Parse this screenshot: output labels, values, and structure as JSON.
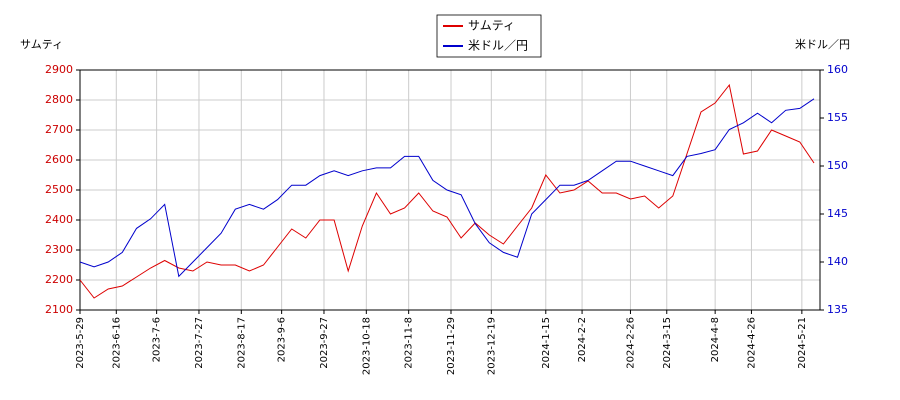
{
  "chart_data": {
    "type": "line",
    "y_label": "サムティ",
    "y2_label": "米ドル／円",
    "x": [
      "2023-5-29",
      "2023-6-5",
      "2023-6-12",
      "2023-6-19",
      "2023-6-26",
      "2023-7-3",
      "2023-7-10",
      "2023-7-17",
      "2023-7-24",
      "2023-7-31",
      "2023-8-7",
      "2023-8-14",
      "2023-8-21",
      "2023-8-28",
      "2023-9-4",
      "2023-9-11",
      "2023-9-18",
      "2023-9-25",
      "2023-10-2",
      "2023-10-9",
      "2023-10-16",
      "2023-10-23",
      "2023-10-30",
      "2023-11-6",
      "2023-11-13",
      "2023-11-20",
      "2023-11-27",
      "2023-12-4",
      "2023-12-11",
      "2023-12-18",
      "2023-12-25",
      "2024-1-1",
      "2024-1-8",
      "2024-1-15",
      "2024-1-22",
      "2024-1-29",
      "2024-2-5",
      "2024-2-12",
      "2024-2-19",
      "2024-2-26",
      "2024-3-4",
      "2024-3-11",
      "2024-3-18",
      "2024-3-25",
      "2024-4-1",
      "2024-4-8",
      "2024-4-15",
      "2024-4-22",
      "2024-4-29",
      "2024-5-6",
      "2024-5-13",
      "2024-5-20",
      "2024-5-27"
    ],
    "series": [
      {
        "name": "サムティ",
        "color": "#dd0000",
        "axis": "y",
        "values": [
          2200,
          2140,
          2170,
          2180,
          2210,
          2240,
          2265,
          2240,
          2230,
          2260,
          2250,
          2250,
          2230,
          2250,
          2310,
          2370,
          2340,
          2400,
          2400,
          2230,
          2380,
          2490,
          2420,
          2440,
          2490,
          2430,
          2410,
          2340,
          2390,
          2350,
          2320,
          2380,
          2440,
          2550,
          2490,
          2500,
          2530,
          2490,
          2490,
          2470,
          2480,
          2440,
          2480,
          2620,
          2760,
          2790,
          2850,
          2620,
          2630,
          2700,
          2680,
          2660,
          2590
        ]
      },
      {
        "name": "米ドル／円",
        "color": "#0000cc",
        "axis": "y2",
        "values": [
          140,
          139.5,
          140,
          141,
          143.5,
          144.5,
          146,
          138.5,
          140,
          141.5,
          143,
          145.5,
          146,
          145.5,
          146.5,
          148,
          148,
          149,
          149.5,
          149,
          149.5,
          149.8,
          149.8,
          151,
          151,
          148.5,
          147.5,
          147,
          144,
          142,
          141,
          140.5,
          145,
          146.5,
          148,
          148,
          148.5,
          149.5,
          150.5,
          150.5,
          150,
          149.5,
          149,
          151,
          151.3,
          151.7,
          153.8,
          154.5,
          155.5,
          154.5,
          155.8,
          156,
          157
        ]
      }
    ],
    "xlim": [
      "2023-5-29",
      "2024-5-30"
    ],
    "xticks": [
      "2023-5-29",
      "2023-6-16",
      "2023-7-6",
      "2023-7-27",
      "2023-8-17",
      "2023-9-6",
      "2023-9-27",
      "2023-10-18",
      "2023-11-8",
      "2023-11-29",
      "2023-12-19",
      "2024-1-15",
      "2024-2-2",
      "2024-2-26",
      "2024-3-15",
      "2024-4-8",
      "2024-4-26",
      "2024-5-21"
    ],
    "ylim": [
      2100,
      2900
    ],
    "yticks": [
      2100,
      2200,
      2300,
      2400,
      2500,
      2600,
      2700,
      2800,
      2900
    ],
    "y2lim": [
      135,
      160
    ],
    "y2ticks": [
      135,
      140,
      145,
      150,
      155,
      160
    ],
    "grid": true
  }
}
